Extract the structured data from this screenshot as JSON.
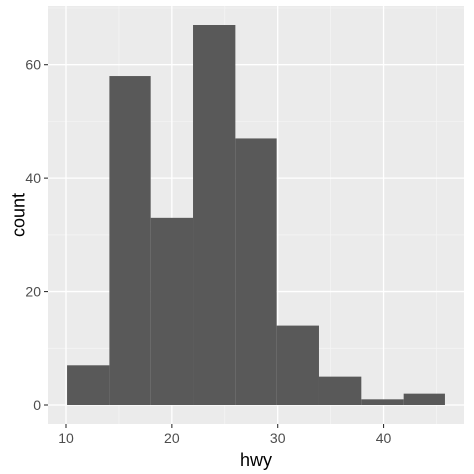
{
  "chart_data": {
    "type": "bar",
    "bins": [
      {
        "x0": 10.1,
        "x1": 14.1,
        "value": 7
      },
      {
        "x0": 14.1,
        "x1": 18.0,
        "value": 58
      },
      {
        "x0": 18.0,
        "x1": 22.0,
        "value": 33
      },
      {
        "x0": 22.0,
        "x1": 26.0,
        "value": 67
      },
      {
        "x0": 26.0,
        "x1": 29.9,
        "value": 47
      },
      {
        "x0": 29.9,
        "x1": 33.9,
        "value": 14
      },
      {
        "x0": 33.9,
        "x1": 37.9,
        "value": 5
      },
      {
        "x0": 37.9,
        "x1": 41.9,
        "value": 1
      },
      {
        "x0": 41.9,
        "x1": 45.8,
        "value": 2
      }
    ],
    "xlabel": "hwy",
    "ylabel": "count",
    "xlim": [
      8.3,
      47.6
    ],
    "ylim": [
      -3.35,
      70.35
    ],
    "xticks": [
      10,
      20,
      30,
      40
    ],
    "yticks": [
      0,
      20,
      40,
      60
    ],
    "xtick_labels": [
      "10",
      "20",
      "30",
      "40"
    ],
    "ytick_labels": [
      "0",
      "20",
      "40",
      "60"
    ],
    "grid": true,
    "legend": "none",
    "colors": {
      "panel": "#ebebeb",
      "grid_major": "#ffffff",
      "grid_minor": "#f5f5f5",
      "bar": "#595959",
      "tick": "#333333",
      "tick_label": "#4d4d4d",
      "axis_title": "#000000"
    }
  }
}
